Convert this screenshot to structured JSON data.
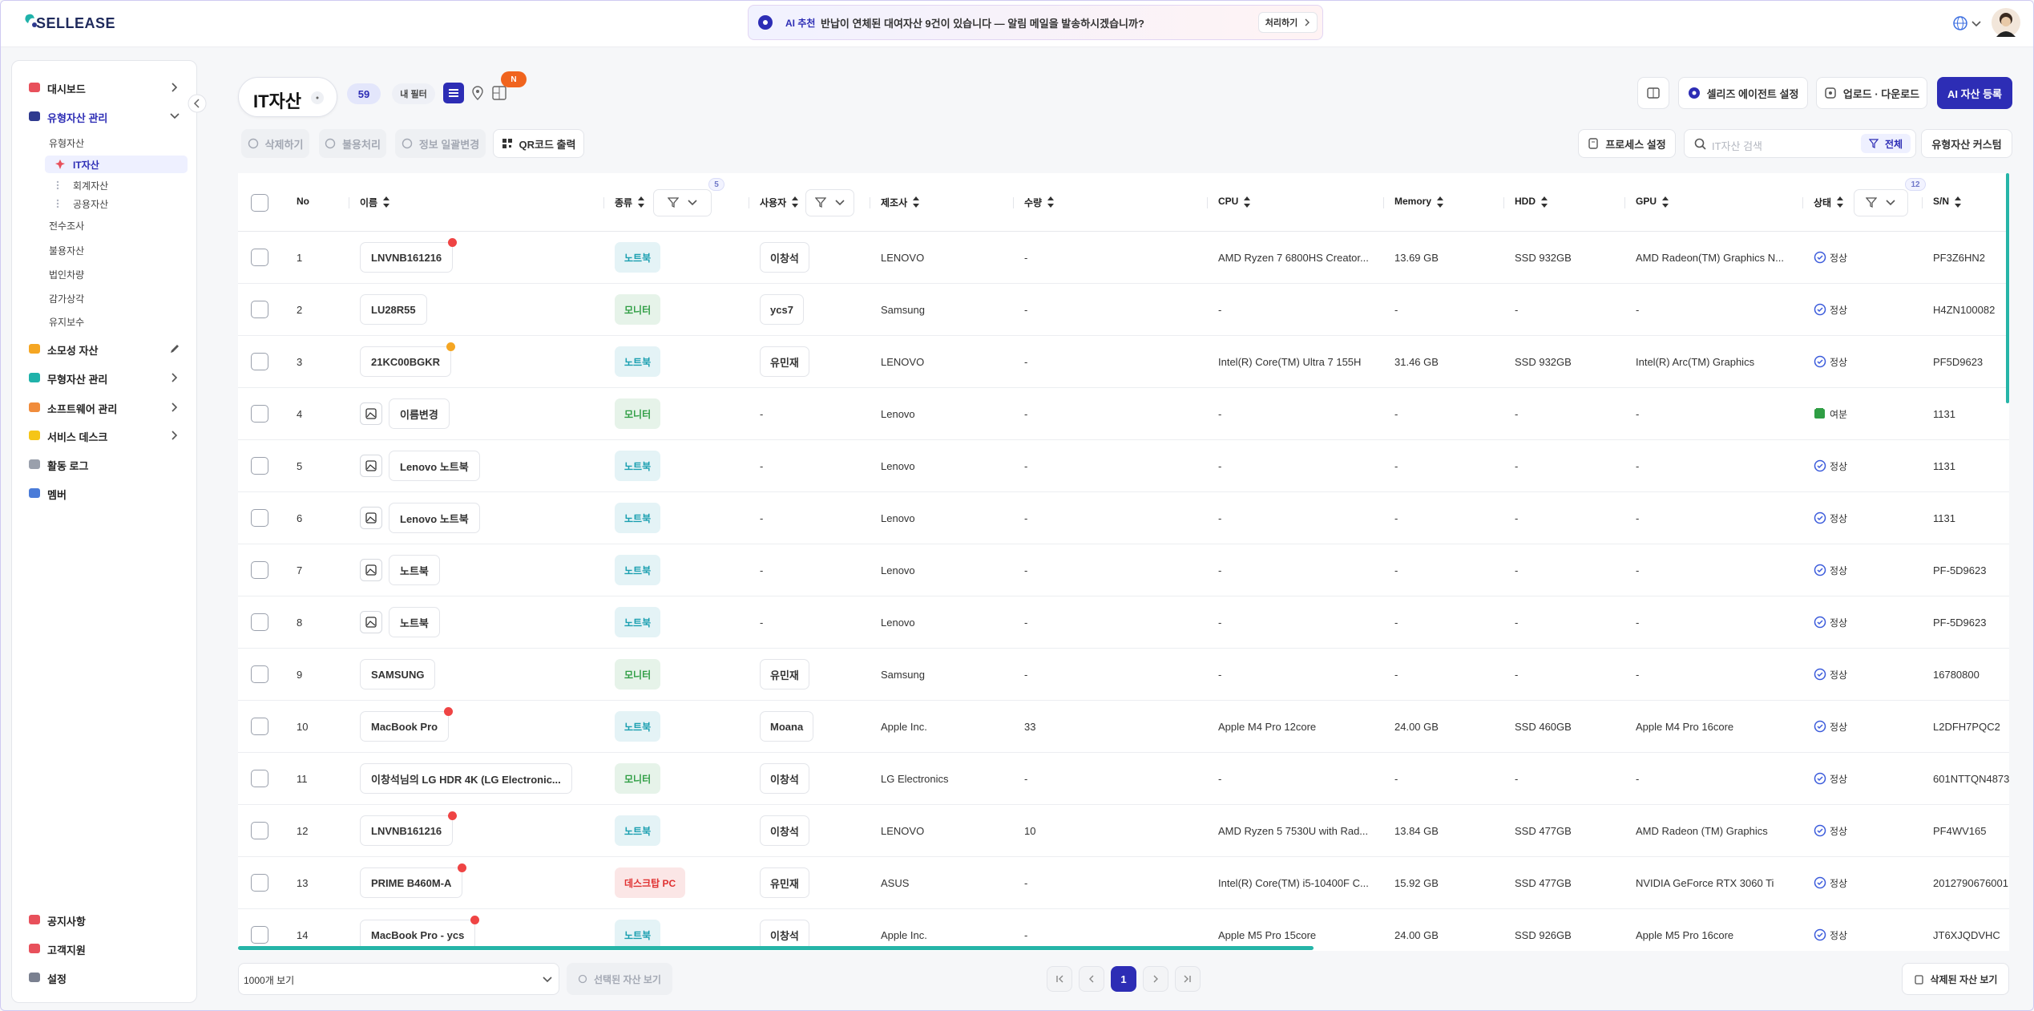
{
  "header": {
    "logo": "SELLEASE",
    "banner": {
      "tag": "AI 추천",
      "message": "반납이 연체된 대여자산 9건이 있습니다 — 알림 메일을 발송하시겠습니까?",
      "action": "처리하기"
    }
  },
  "sidebar": {
    "items": [
      {
        "label": "대시보드",
        "level": 0,
        "icon_color": "#e8505b",
        "chevron": "right"
      },
      {
        "label": "유형자산 관리",
        "level": 0,
        "icon_color": "#2f3a8f",
        "chevron": "down",
        "active": true
      },
      {
        "label": "유형자산",
        "level": 1
      },
      {
        "label": "IT자산",
        "level": 2,
        "icon_color": "#e8505b",
        "active": true
      },
      {
        "label": "회계자산",
        "level": 2,
        "icon_color": "#b0b4c0"
      },
      {
        "label": "공용자산",
        "level": 2,
        "icon_color": "#b0b4c0"
      },
      {
        "label": "전수조사",
        "level": 1
      },
      {
        "label": "불용자산",
        "level": 1
      },
      {
        "label": "법인차량",
        "level": 1
      },
      {
        "label": "감가상각",
        "level": 1
      },
      {
        "label": "유지보수",
        "level": 1
      },
      {
        "label": "소모성 자산",
        "level": 0,
        "icon_color": "#f5a623",
        "chevron": "edit"
      },
      {
        "label": "무형자산 관리",
        "level": 0,
        "icon_color": "#20b2aa",
        "chevron": "right"
      },
      {
        "label": "소프트웨어 관리",
        "level": 0,
        "icon_color": "#f08c3c",
        "chevron": "right"
      },
      {
        "label": "서비스 데스크",
        "level": 0,
        "icon_color": "#f5c518",
        "chevron": "right"
      },
      {
        "label": "활동 로그",
        "level": 0,
        "icon_color": "#9aa0ac"
      },
      {
        "label": "멤버",
        "level": 0,
        "icon_color": "#4a7bd8"
      }
    ],
    "footer_items": [
      {
        "label": "공지사항",
        "icon_color": "#e8505b"
      },
      {
        "label": "고객지원",
        "icon_color": "#e8505b"
      },
      {
        "label": "설정",
        "icon_color": "#7a8090"
      }
    ]
  },
  "page": {
    "title": "IT자산",
    "count": 59,
    "filter": "내 필터",
    "new_badge": "N",
    "buttons": [
      "셀리즈 에이전트 설정",
      "업로드 · 다운로드",
      "AI 자산 등록"
    ]
  },
  "toolbar": {
    "actions": [
      "삭제하기",
      "불용처리",
      "정보 일괄변경",
      "QR코드 출력"
    ],
    "process": "프로세스 설정",
    "search_placeholder": "IT자산 검색",
    "search_scope": "전체",
    "custom": "유형자산 커스텀"
  },
  "table": {
    "columns": [
      {
        "label": "No"
      },
      {
        "label": "이름",
        "sortable": true
      },
      {
        "label": "종류",
        "sortable": true,
        "filter": true,
        "filter_count": 5
      },
      {
        "label": "사용자",
        "sortable": true,
        "filter": true
      },
      {
        "label": "제조사",
        "sortable": true
      },
      {
        "label": "수량",
        "sortable": true
      },
      {
        "label": "CPU",
        "sortable": true
      },
      {
        "label": "Memory",
        "sortable": true
      },
      {
        "label": "HDD",
        "sortable": true
      },
      {
        "label": "GPU",
        "sortable": true
      },
      {
        "label": "상태",
        "sortable": true,
        "filter": true,
        "filter_count": 12
      },
      {
        "label": "S/N",
        "sortable": true
      }
    ],
    "rows": [
      {
        "no": 1,
        "name": "LNVNB161216",
        "dot": "#ef4444",
        "image": false,
        "type": "노트북",
        "type_color": "#1a9fb0",
        "user": "이창석",
        "user_pill": true,
        "maker": "LENOVO",
        "qty": "-",
        "cpu": "AMD Ryzen 7 6800HS Creator...",
        "memory": "13.69 GB",
        "hdd": "SSD 932GB",
        "gpu": "AMD Radeon(TM) Graphics N...",
        "status": "정상",
        "status_color": "#3b5bdb",
        "sn": "PF3Z6HN2"
      },
      {
        "no": 2,
        "name": "LU28R55",
        "dot": null,
        "image": false,
        "type": "모니터",
        "type_color": "#2f9e44",
        "user": "ycs7",
        "user_pill": true,
        "maker": "Samsung",
        "qty": "-",
        "cpu": "-",
        "memory": "-",
        "hdd": "-",
        "gpu": "-",
        "status": "정상",
        "status_color": "#3b5bdb",
        "sn": "H4ZN100082"
      },
      {
        "no": 3,
        "name": "21KC00BGKR",
        "dot": "#f5a623",
        "image": false,
        "type": "노트북",
        "type_color": "#1a9fb0",
        "user": "유민재",
        "user_pill": true,
        "maker": "LENOVO",
        "qty": "-",
        "cpu": "Intel(R) Core(TM) Ultra 7 155H",
        "memory": "31.46 GB",
        "hdd": "SSD 932GB",
        "gpu": "Intel(R) Arc(TM) Graphics",
        "status": "정상",
        "status_color": "#3b5bdb",
        "sn": "PF5D9623"
      },
      {
        "no": 4,
        "name": "이름변경",
        "dot": null,
        "image": true,
        "type": "모니터",
        "type_color": "#2f9e44",
        "user": "-",
        "user_pill": false,
        "maker": "Lenovo",
        "qty": "-",
        "cpu": "-",
        "memory": "-",
        "hdd": "-",
        "gpu": "-",
        "status": "여분",
        "status_color": "#2f9e44",
        "sn": "1131"
      },
      {
        "no": 5,
        "name": "Lenovo 노트북",
        "dot": null,
        "image": true,
        "type": "노트북",
        "type_color": "#1a9fb0",
        "user": "-",
        "user_pill": false,
        "maker": "Lenovo",
        "qty": "-",
        "cpu": "-",
        "memory": "-",
        "hdd": "-",
        "gpu": "-",
        "status": "정상",
        "status_color": "#3b5bdb",
        "sn": "1131"
      },
      {
        "no": 6,
        "name": "Lenovo 노트북",
        "dot": null,
        "image": true,
        "type": "노트북",
        "type_color": "#1a9fb0",
        "user": "-",
        "user_pill": false,
        "maker": "Lenovo",
        "qty": "-",
        "cpu": "-",
        "memory": "-",
        "hdd": "-",
        "gpu": "-",
        "status": "정상",
        "status_color": "#3b5bdb",
        "sn": "1131"
      },
      {
        "no": 7,
        "name": "노트북",
        "dot": null,
        "image": true,
        "type": "노트북",
        "type_color": "#1a9fb0",
        "user": "-",
        "user_pill": false,
        "maker": "Lenovo",
        "qty": "-",
        "cpu": "-",
        "memory": "-",
        "hdd": "-",
        "gpu": "-",
        "status": "정상",
        "status_color": "#3b5bdb",
        "sn": "PF-5D9623"
      },
      {
        "no": 8,
        "name": "노트북",
        "dot": null,
        "image": true,
        "type": "노트북",
        "type_color": "#1a9fb0",
        "user": "-",
        "user_pill": false,
        "maker": "Lenovo",
        "qty": "-",
        "cpu": "-",
        "memory": "-",
        "hdd": "-",
        "gpu": "-",
        "status": "정상",
        "status_color": "#3b5bdb",
        "sn": "PF-5D9623"
      },
      {
        "no": 9,
        "name": "SAMSUNG",
        "dot": null,
        "image": false,
        "type": "모니터",
        "type_color": "#2f9e44",
        "user": "유민재",
        "user_pill": true,
        "maker": "Samsung",
        "qty": "-",
        "cpu": "-",
        "memory": "-",
        "hdd": "-",
        "gpu": "-",
        "status": "정상",
        "status_color": "#3b5bdb",
        "sn": "16780800"
      },
      {
        "no": 10,
        "name": "MacBook Pro",
        "dot": "#ef4444",
        "image": false,
        "type": "노트북",
        "type_color": "#1a9fb0",
        "user": "Moana",
        "user_pill": true,
        "maker": "Apple Inc.",
        "qty": 33,
        "cpu": "Apple M4 Pro 12core",
        "memory": "24.00 GB",
        "hdd": "SSD 460GB",
        "gpu": "Apple M4 Pro 16core",
        "status": "정상",
        "status_color": "#3b5bdb",
        "sn": "L2DFH7PQC2"
      },
      {
        "no": 11,
        "name": "이창석님의 LG HDR 4K (LG Electronic...",
        "dot": null,
        "image": false,
        "type": "모니터",
        "type_color": "#2f9e44",
        "user": "이창석",
        "user_pill": true,
        "maker": "LG Electronics",
        "qty": "-",
        "cpu": "-",
        "memory": "-",
        "hdd": "-",
        "gpu": "-",
        "status": "정상",
        "status_color": "#3b5bdb",
        "sn": "601NTTQN4873"
      },
      {
        "no": 12,
        "name": "LNVNB161216",
        "dot": "#ef4444",
        "image": false,
        "type": "노트북",
        "type_color": "#1a9fb0",
        "user": "이창석",
        "user_pill": true,
        "maker": "LENOVO",
        "qty": 10,
        "cpu": "AMD Ryzen 5 7530U with Rad...",
        "memory": "13.84 GB",
        "hdd": "SSD 477GB",
        "gpu": "AMD Radeon (TM) Graphics",
        "status": "정상",
        "status_color": "#3b5bdb",
        "sn": "PF4WV165"
      },
      {
        "no": 13,
        "name": "PRIME B460M-A",
        "dot": "#ef4444",
        "image": false,
        "type": "데스크탑 PC",
        "type_color": "#e03131",
        "user": "유민재",
        "user_pill": true,
        "maker": "ASUS",
        "qty": "-",
        "cpu": "Intel(R) Core(TM) i5-10400F C...",
        "memory": "15.92 GB",
        "hdd": "SSD 477GB",
        "gpu": "NVIDIA GeForce RTX 3060 Ti",
        "status": "정상",
        "status_color": "#3b5bdb",
        "sn": "2012790676001"
      },
      {
        "no": 14,
        "name": "MacBook Pro - ycs",
        "dot": "#ef4444",
        "image": false,
        "type": "노트북",
        "type_color": "#1a9fb0",
        "user": "이창석",
        "user_pill": true,
        "maker": "Apple Inc.",
        "qty": "-",
        "cpu": "Apple M5 Pro 15core",
        "memory": "24.00 GB",
        "hdd": "SSD 926GB",
        "gpu": "Apple M5 Pro 16core",
        "status": "정상",
        "status_color": "#3b5bdb",
        "sn": "JT6XJQDVHC"
      }
    ]
  },
  "footer": {
    "page_size": "1000개 보기",
    "selected": "선택된 자산 보기",
    "current_page": 1,
    "deleted": "삭제된 자산 보기"
  }
}
